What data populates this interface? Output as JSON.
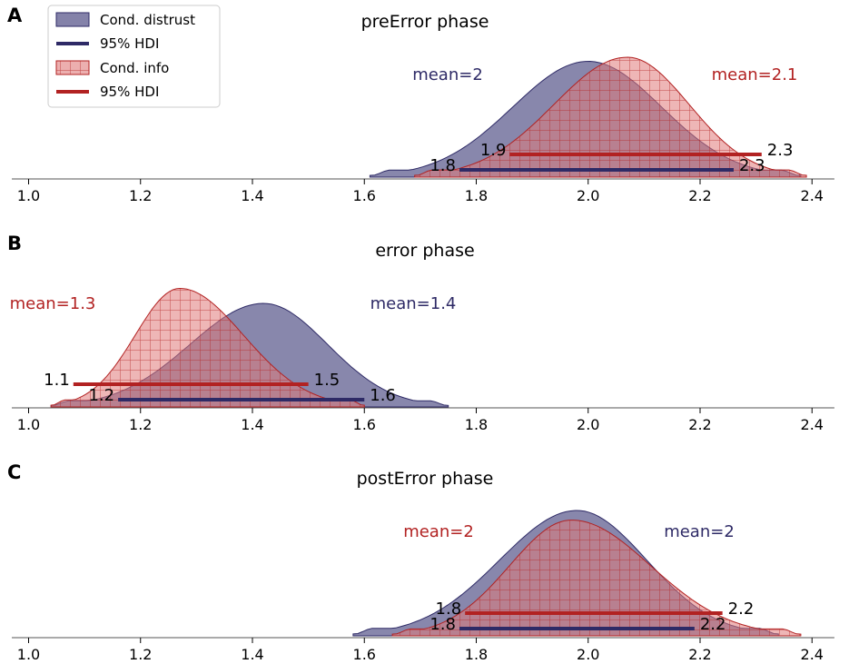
{
  "colors": {
    "distrust": "#2e2a66",
    "distrust_fill": "#6e6c9a",
    "info": "#b22222",
    "info_fill": "#e07a7a",
    "axis": "#555555"
  },
  "legend": {
    "items": [
      {
        "label": "Cond. distrust",
        "kind": "patch",
        "series": "distrust"
      },
      {
        "label": "95% HDI",
        "kind": "line",
        "series": "distrust"
      },
      {
        "label": "Cond. info",
        "kind": "patch-hatched",
        "series": "info"
      },
      {
        "label": "95% HDI",
        "kind": "line",
        "series": "info"
      }
    ]
  },
  "chart_data": [
    {
      "panel": "A",
      "type": "area",
      "title": "preError phase",
      "xlim": [
        0.97,
        2.44
      ],
      "xticks": [
        1.0,
        1.2,
        1.4,
        1.6,
        1.8,
        2.0,
        2.2,
        2.4
      ],
      "xtick_labels": [
        "1.0",
        "1.2",
        "1.4",
        "1.6",
        "1.8",
        "2.0",
        "2.2",
        "2.4"
      ],
      "series": [
        {
          "name": "Cond. distrust",
          "key": "distrust",
          "mean_label": "mean=2",
          "support": [
            1.61,
            2.38
          ],
          "peak_x": 2.0,
          "peak_density": 0.85,
          "hdi": [
            1.77,
            2.26
          ],
          "hdi_labels": [
            "1.8",
            "2.3"
          ]
        },
        {
          "name": "Cond. info",
          "key": "info",
          "mean_label": "mean=2.1",
          "support": [
            1.69,
            2.39
          ],
          "peak_x": 2.07,
          "peak_density": 0.88,
          "hdi": [
            1.86,
            2.31
          ],
          "hdi_labels": [
            "1.9",
            "2.3"
          ]
        }
      ]
    },
    {
      "panel": "B",
      "type": "area",
      "title": "error phase",
      "xlim": [
        0.97,
        2.44
      ],
      "xticks": [
        1.0,
        1.2,
        1.4,
        1.6,
        1.8,
        2.0,
        2.2,
        2.4
      ],
      "xtick_labels": [
        "1.0",
        "1.2",
        "1.4",
        "1.6",
        "1.8",
        "2.0",
        "2.2",
        "2.4"
      ],
      "series": [
        {
          "name": "Cond. distrust",
          "key": "distrust",
          "mean_label": "mean=1.4",
          "support": [
            1.04,
            1.75
          ],
          "peak_x": 1.42,
          "peak_density": 0.76,
          "hdi": [
            1.16,
            1.6
          ],
          "hdi_labels": [
            "1.2",
            "1.6"
          ]
        },
        {
          "name": "Cond. info",
          "key": "info",
          "mean_label": "mean=1.3",
          "support": [
            1.04,
            1.6
          ],
          "peak_x": 1.27,
          "peak_density": 0.87,
          "hdi": [
            1.08,
            1.5
          ],
          "hdi_labels": [
            "1.1",
            "1.5"
          ]
        }
      ]
    },
    {
      "panel": "C",
      "type": "area",
      "title": "postError phase",
      "xlim": [
        0.97,
        2.44
      ],
      "xticks": [
        1.0,
        1.2,
        1.4,
        1.6,
        1.8,
        2.0,
        2.2,
        2.4
      ],
      "xtick_labels": [
        "1.0",
        "1.2",
        "1.4",
        "1.6",
        "1.8",
        "2.0",
        "2.2",
        "2.4"
      ],
      "series": [
        {
          "name": "Cond. distrust",
          "key": "distrust",
          "mean_label": "mean=2",
          "support": [
            1.58,
            2.34
          ],
          "peak_x": 1.98,
          "peak_density": 0.92,
          "hdi": [
            1.77,
            2.19
          ],
          "hdi_labels": [
            "1.8",
            "2.2"
          ]
        },
        {
          "name": "Cond. info",
          "key": "info",
          "mean_label": "mean=2",
          "support": [
            1.65,
            2.38
          ],
          "peak_x": 1.97,
          "peak_density": 0.85,
          "hdi": [
            1.78,
            2.24
          ],
          "hdi_labels": [
            "1.8",
            "2.2"
          ]
        }
      ]
    }
  ]
}
